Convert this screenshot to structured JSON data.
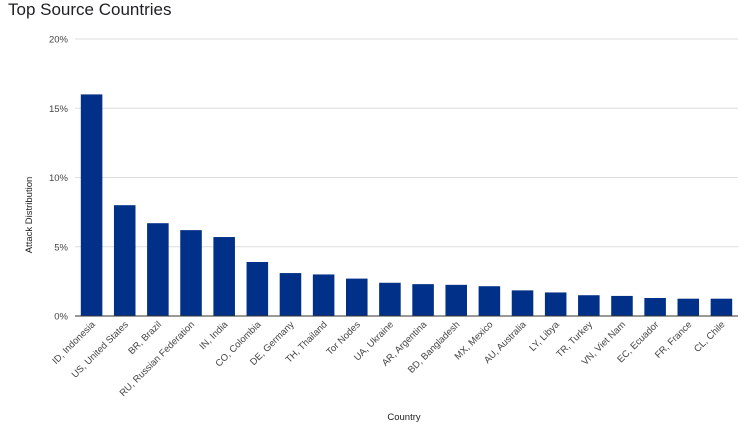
{
  "chart_data": {
    "type": "bar",
    "title": "Top Source Countries",
    "xlabel": "Country",
    "ylabel": "Attack Distribution",
    "ylim": [
      0,
      20
    ],
    "yticks": [
      0,
      5,
      10,
      15,
      20
    ],
    "ytick_labels": [
      "0%",
      "5%",
      "10%",
      "15%",
      "20%"
    ],
    "grid": true,
    "legend": "none",
    "bar_color": "#003087",
    "categories": [
      "ID, Indonesia",
      "US, United States",
      "BR, Brazil",
      "RU, Russian Federation",
      "IN, India",
      "CO, Colombia",
      "DE, Germany",
      "TH, Thailand",
      "Tor Nodes",
      "UA, Ukraine",
      "AR, Argentina",
      "BD, Bangladesh",
      "MX, Mexico",
      "AU, Australia",
      "LY, Libya",
      "TR, Turkey",
      "VN, Viet Nam",
      "EC, Ecuador",
      "FR, France",
      "CL, Chile"
    ],
    "values": [
      16.0,
      8.0,
      6.7,
      6.2,
      5.7,
      3.9,
      3.1,
      3.0,
      2.7,
      2.4,
      2.3,
      2.25,
      2.15,
      1.85,
      1.7,
      1.5,
      1.45,
      1.3,
      1.25,
      1.25
    ]
  }
}
